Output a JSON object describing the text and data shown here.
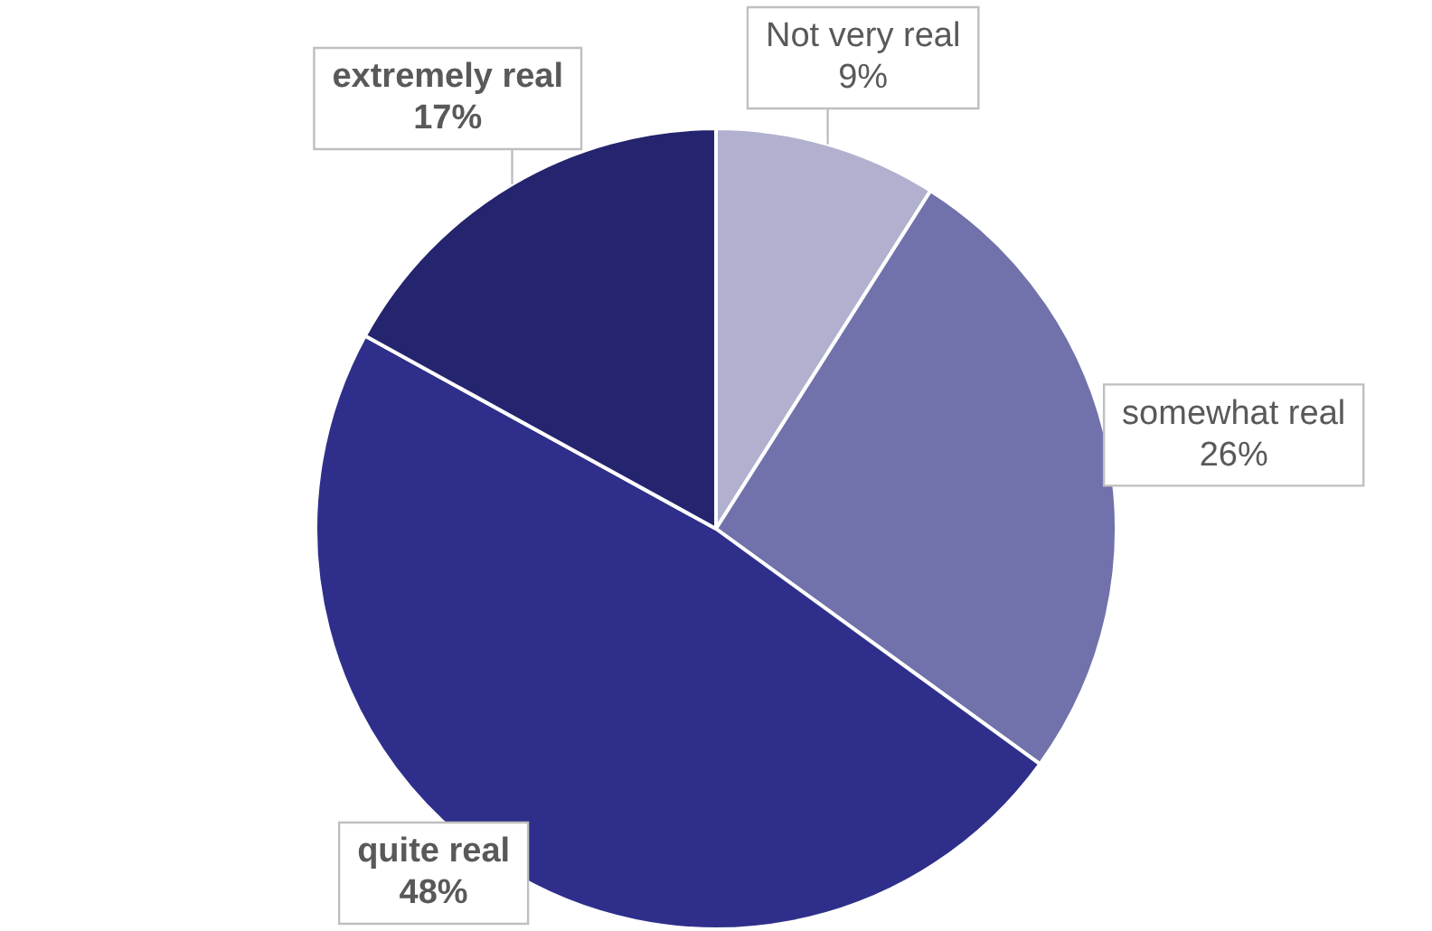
{
  "chart_data": {
    "type": "pie",
    "categories": [
      "Not very real",
      "somewhat real",
      "quite real",
      "extremely real"
    ],
    "values": [
      9,
      26,
      48,
      17
    ],
    "value_labels": [
      "9%",
      "26%",
      "48%",
      "17%"
    ],
    "colors": [
      "#b1b1cf",
      "#7171ab",
      "#2f2f8b",
      "#24246f"
    ],
    "legend": false
  }
}
